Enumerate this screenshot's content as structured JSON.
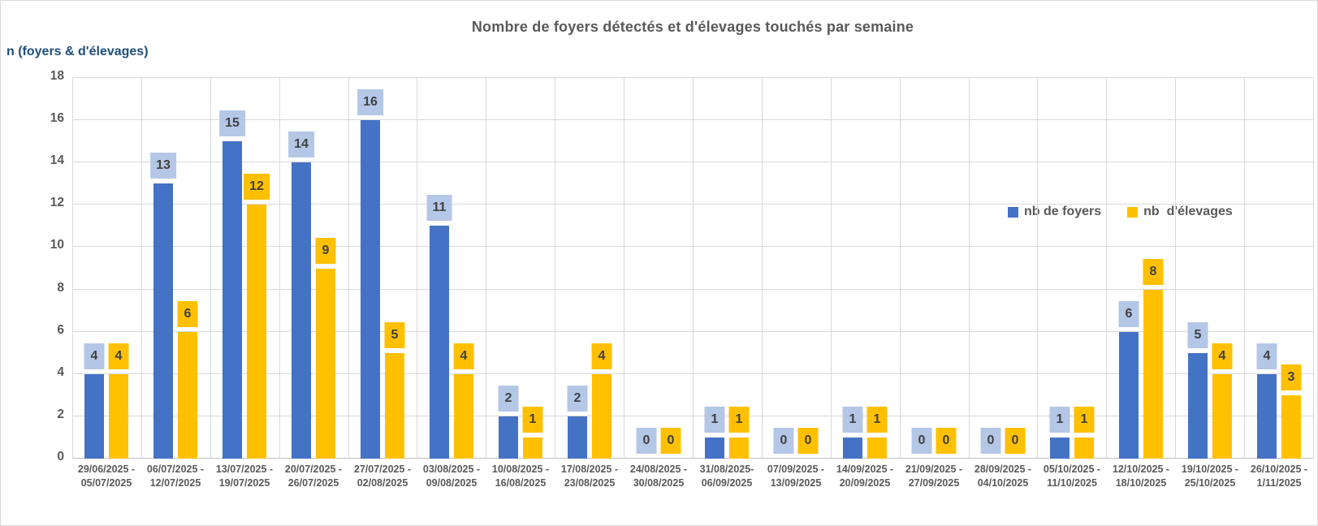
{
  "chart_data": {
    "type": "bar",
    "title": "Nombre de foyers détectés et d'élevages touchés par semaine",
    "y_axis_title": "n (foyers & d'élevages)",
    "xlabel": "",
    "ylabel": "n (foyers & d'élevages)",
    "ylim": [
      0,
      18
    ],
    "ytick_step": 2,
    "grid": true,
    "legend_position": "inside-right",
    "background_color": "#ffffff",
    "gridline_color": "#d9d9d9",
    "label_text_color": "#404040",
    "title_color": "#595959",
    "axis_title_color": "#1f4e79",
    "tick_color": "#595959",
    "categories": [
      [
        "29/06/2025 -",
        "05/07/2025"
      ],
      [
        "06/07/2025 -",
        "12/07/2025"
      ],
      [
        "13/07/2025 -",
        "19/07/2025"
      ],
      [
        "20/07/2025 -",
        "26/07/2025"
      ],
      [
        "27/07/2025 -",
        "02/08/2025"
      ],
      [
        "03/08/2025 -",
        "09/08/2025"
      ],
      [
        "10/08/2025 -",
        "16/08/2025"
      ],
      [
        "17/08/2025 -",
        "23/08/2025"
      ],
      [
        "24/08/2025 -",
        "30/08/2025"
      ],
      [
        "31/08/2025-",
        "06/09/2025"
      ],
      [
        "07/09/2025 -",
        "13/09/2025"
      ],
      [
        "14/09/2025 -",
        "20/09/2025"
      ],
      [
        "21/09/2025 -",
        "27/09/2025"
      ],
      [
        "28/09/2025 -",
        "04/10/2025"
      ],
      [
        "05/10/2025 -",
        "11/10/2025"
      ],
      [
        "12/10/2025 -",
        "18/10/2025"
      ],
      [
        "19/10/2025 -",
        "25/10/2025"
      ],
      [
        "26/10/2025 -",
        "1/11/2025"
      ]
    ],
    "series": [
      {
        "name": "nb de foyers",
        "color": "#4472c4",
        "label_bg": "#b4c7e7",
        "values": [
          4,
          13,
          15,
          14,
          16,
          11,
          2,
          2,
          0,
          1,
          0,
          1,
          0,
          0,
          1,
          6,
          5,
          4
        ]
      },
      {
        "name": "nb  d'élevages",
        "color": "#ffc000",
        "label_bg": "#ffc000",
        "values": [
          4,
          6,
          12,
          9,
          5,
          4,
          1,
          4,
          0,
          1,
          0,
          1,
          0,
          0,
          1,
          8,
          4,
          3
        ]
      }
    ]
  }
}
